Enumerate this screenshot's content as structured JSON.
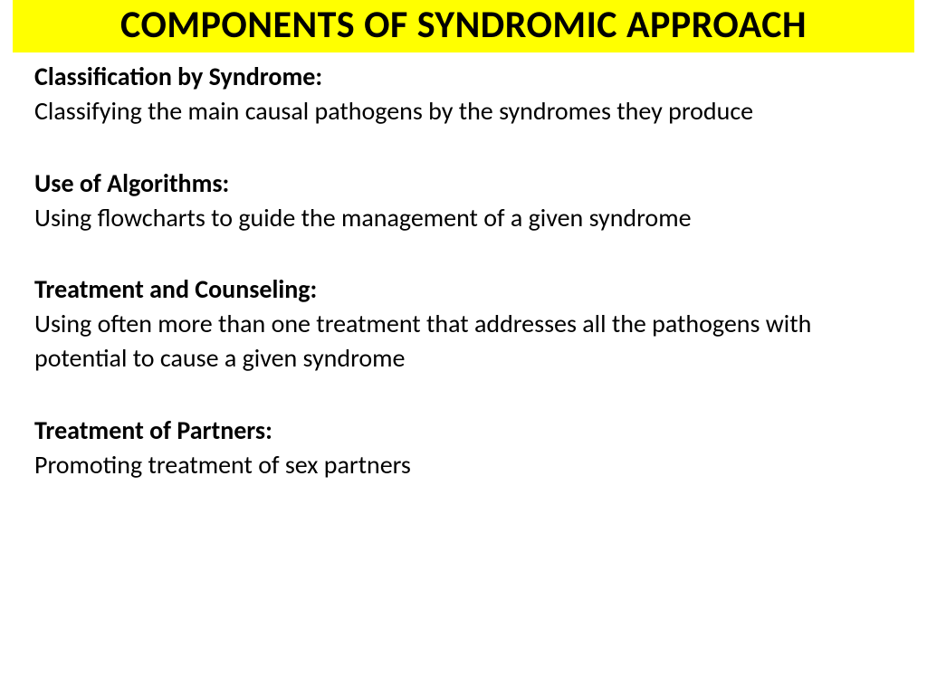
{
  "title": "COMPONENTS OF SYNDROMIC APPROACH",
  "colors": {
    "title_background": "#ffff00",
    "page_background": "#ffffff",
    "text": "#000000"
  },
  "typography": {
    "title_fontsize": 42,
    "title_weight": "bold",
    "heading_fontsize": 28,
    "heading_weight": "bold",
    "body_fontsize": 28,
    "body_weight": "normal",
    "font_family": "Calibri"
  },
  "sections": [
    {
      "heading": "Classification by Syndrome:",
      "body": "Classifying the main causal pathogens by the syndromes they produce"
    },
    {
      "heading": "Use of Algorithms:",
      "body": "Using flowcharts to guide the management of a given syndrome"
    },
    {
      "heading": "Treatment and Counseling:",
      "body": "Using often more than one treatment that addresses all the pathogens with potential to cause a given syndrome"
    },
    {
      "heading": "Treatment of Partners:",
      "body": "Promoting treatment of sex partners"
    }
  ]
}
